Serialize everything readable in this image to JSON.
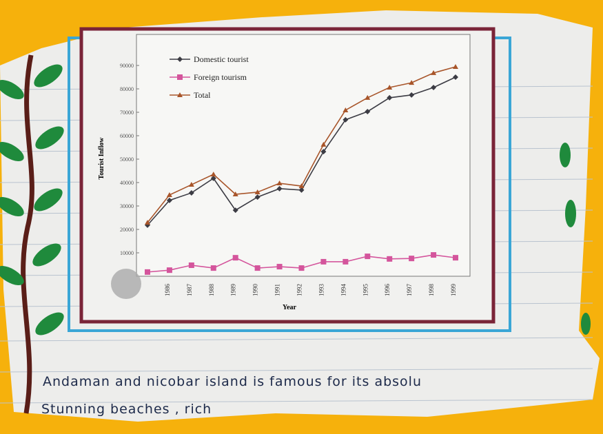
{
  "chart_data": {
    "type": "line",
    "ylabel": "Tourist Inflow",
    "xlabel": "Year",
    "categories": [
      null,
      "1986",
      "1987",
      "1988",
      "1989",
      "1990",
      "1991",
      "1992",
      "1993",
      "1994",
      "1995",
      "1996",
      "1997",
      "1998",
      "1999"
    ],
    "series": [
      {
        "name": "Domestic tourist",
        "color": "#3c3c44",
        "marker": "diamond",
        "values": [
          21800,
          32400,
          35600,
          41800,
          28200,
          33800,
          37400,
          36800,
          53200,
          66800,
          70300,
          76200,
          77400,
          80600,
          85000
        ]
      },
      {
        "name": "Foreign tourism",
        "color": "#d4559c",
        "marker": "square",
        "values": [
          1800,
          2600,
          4700,
          3500,
          7900,
          3500,
          4100,
          3500,
          6200,
          6200,
          8500,
          7400,
          7600,
          9100,
          7900
        ]
      },
      {
        "name": "Total",
        "color": "#a8552a",
        "marker": "triangle",
        "values": [
          22900,
          34700,
          39100,
          43500,
          35000,
          35900,
          39700,
          38500,
          56200,
          70900,
          76200,
          80600,
          82600,
          86800,
          89400
        ]
      }
    ],
    "ylim": [
      0,
      100000
    ],
    "yticks": [
      10000,
      20000,
      30000,
      40000,
      50000,
      60000,
      70000,
      80000,
      90000
    ],
    "grid": false,
    "legend": "upper-left"
  },
  "note": {
    "lines": [
      "Andaman and nicobar island is famous for its absolu",
      "Stunning beaches , rich"
    ]
  }
}
